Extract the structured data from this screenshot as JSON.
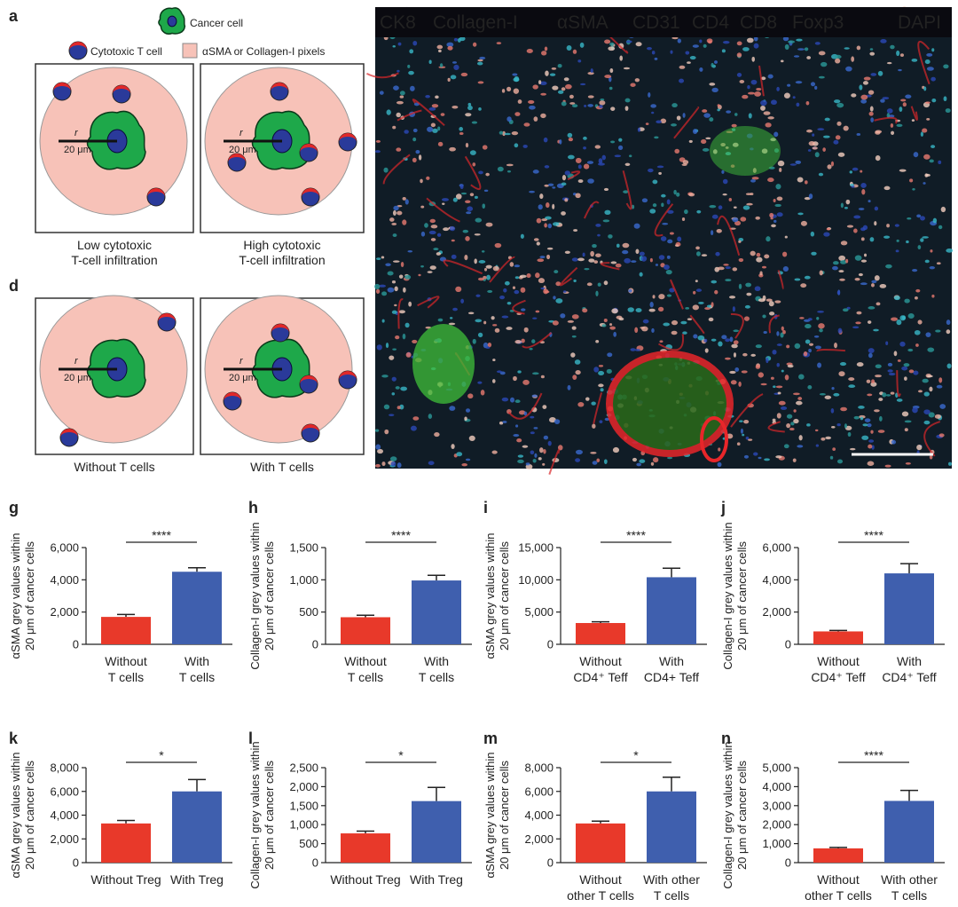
{
  "diagram": {
    "panel_a": "a",
    "panel_d": "d",
    "legend_cancer": "Cancer cell",
    "legend_tcell": "Cytotoxic T cell",
    "legend_pixels": "αSMA or Collagen-I pixels",
    "radius_symbol": "r",
    "radius_value": "20 μm",
    "captions": [
      "Low cytotoxic\nT-cell infiltration",
      "High cytotoxic\nT-cell infiltration",
      "Without T cells",
      "With T cells"
    ]
  },
  "image": {
    "channels": [
      {
        "label": "CK8",
        "color": "#2fb84a"
      },
      {
        "label": "Collagen-I",
        "color": "#4a78c8"
      },
      {
        "label": "αSMA",
        "color": "#e8262a"
      },
      {
        "label": "CD31",
        "color": "#35c0e0"
      },
      {
        "label": "CD4",
        "color": "#d8308a"
      },
      {
        "label": "CD8",
        "color": "#f07a3a"
      },
      {
        "label": "Foxp3",
        "color": "#ffffff"
      },
      {
        "label": "DAPI",
        "color": "#2a3ad8"
      }
    ]
  },
  "chart_data": [
    {
      "type": "bar",
      "panel": "g",
      "ylabel": "αSMA grey values within\n20 μm of cancer cells",
      "categories": [
        "Without\nT cells",
        "With\nT cells"
      ],
      "values": [
        1700,
        4500
      ],
      "errors": [
        150,
        250
      ],
      "colors": [
        "#e8392a",
        "#3f5fae"
      ],
      "ylim": [
        0,
        6000
      ],
      "yticks": [
        0,
        {
          "value": 2000,
          "label": "2,000"
        },
        {
          "value": 4000,
          "label": "4,000"
        },
        {
          "value": 6000,
          "label": "6,000"
        }
      ],
      "annotation": "****"
    },
    {
      "type": "bar",
      "panel": "h",
      "ylabel": "Collagen-I grey values within\n20 μm of cancer cells",
      "categories": [
        "Without\nT cells",
        "With\nT cells"
      ],
      "values": [
        420,
        990
      ],
      "errors": [
        30,
        80
      ],
      "colors": [
        "#e8392a",
        "#3f5fae"
      ],
      "ylim": [
        0,
        1500
      ],
      "yticks": [
        0,
        500,
        {
          "value": 1000,
          "label": "1,000"
        },
        {
          "value": 1500,
          "label": "1,500"
        }
      ],
      "annotation": "****"
    },
    {
      "type": "bar",
      "panel": "i",
      "ylabel": "αSMA grey values within\n20 μm of cancer cells",
      "categories": [
        "Without\nCD4⁺ Teff",
        "With\nCD4+ Teff"
      ],
      "values": [
        3300,
        10400
      ],
      "errors": [
        200,
        1400
      ],
      "colors": [
        "#e8392a",
        "#3f5fae"
      ],
      "ylim": [
        0,
        15000
      ],
      "yticks": [
        0,
        {
          "value": 5000,
          "label": "5,000"
        },
        {
          "value": 10000,
          "label": "10,000"
        },
        {
          "value": 15000,
          "label": "15,000"
        }
      ],
      "annotation": "****"
    },
    {
      "type": "bar",
      "panel": "j",
      "ylabel": "Collagen-I grey values within\n20 μm of cancer cells",
      "categories": [
        "Without\nCD4⁺ Teff",
        "With\nCD4⁺ Teff"
      ],
      "values": [
        800,
        4400
      ],
      "errors": [
        60,
        600
      ],
      "colors": [
        "#e8392a",
        "#3f5fae"
      ],
      "ylim": [
        0,
        6000
      ],
      "yticks": [
        0,
        {
          "value": 2000,
          "label": "2,000"
        },
        {
          "value": 4000,
          "label": "4,000"
        },
        {
          "value": 6000,
          "label": "6,000"
        }
      ],
      "annotation": "****"
    },
    {
      "type": "bar",
      "panel": "k",
      "ylabel": "αSMA grey values within\n20 μm of cancer cells",
      "categories": [
        "Without Treg",
        "With Treg"
      ],
      "values": [
        3300,
        6000
      ],
      "errors": [
        250,
        1000
      ],
      "colors": [
        "#e8392a",
        "#3f5fae"
      ],
      "ylim": [
        0,
        8000
      ],
      "yticks": [
        0,
        {
          "value": 2000,
          "label": "2,000"
        },
        {
          "value": 4000,
          "label": "4,000"
        },
        {
          "value": 6000,
          "label": "6,000"
        },
        {
          "value": 8000,
          "label": "8,000"
        }
      ],
      "annotation": "*"
    },
    {
      "type": "bar",
      "panel": "l",
      "ylabel": "Collagen-I grey values within\n20 μm of cancer cells",
      "categories": [
        "Without Treg",
        "With Treg"
      ],
      "values": [
        770,
        1620
      ],
      "errors": [
        60,
        360
      ],
      "colors": [
        "#e8392a",
        "#3f5fae"
      ],
      "ylim": [
        0,
        2500
      ],
      "yticks": [
        0,
        500,
        {
          "value": 1000,
          "label": "1,000"
        },
        {
          "value": 1500,
          "label": "1,500"
        },
        {
          "value": 2000,
          "label": "2,000"
        },
        {
          "value": 2500,
          "label": "2,500"
        }
      ],
      "annotation": "*"
    },
    {
      "type": "bar",
      "panel": "m",
      "ylabel": "αSMA grey values within\n20 μm of cancer cells",
      "categories": [
        "Without\nother T cells",
        "With other\nT cells"
      ],
      "values": [
        3300,
        6000
      ],
      "errors": [
        200,
        1200
      ],
      "colors": [
        "#e8392a",
        "#3f5fae"
      ],
      "ylim": [
        0,
        8000
      ],
      "yticks": [
        0,
        {
          "value": 2000,
          "label": "2,000"
        },
        {
          "value": 4000,
          "label": "4,000"
        },
        {
          "value": 6000,
          "label": "6,000"
        },
        {
          "value": 8000,
          "label": "8,000"
        }
      ],
      "annotation": "*"
    },
    {
      "type": "bar",
      "panel": "n",
      "ylabel": "Collagen-I grey values within\n20 μm of cancer cells",
      "categories": [
        "Without\nother T cells",
        "With other\nT cells"
      ],
      "values": [
        750,
        3250
      ],
      "errors": [
        50,
        550
      ],
      "colors": [
        "#e8392a",
        "#3f5fae"
      ],
      "ylim": [
        0,
        5000
      ],
      "yticks": [
        0,
        {
          "value": 1000,
          "label": "1,000"
        },
        {
          "value": 2000,
          "label": "2,000"
        },
        {
          "value": 3000,
          "label": "3,000"
        },
        {
          "value": 4000,
          "label": "4,000"
        },
        {
          "value": 5000,
          "label": "5,000"
        }
      ],
      "annotation": "****"
    }
  ]
}
